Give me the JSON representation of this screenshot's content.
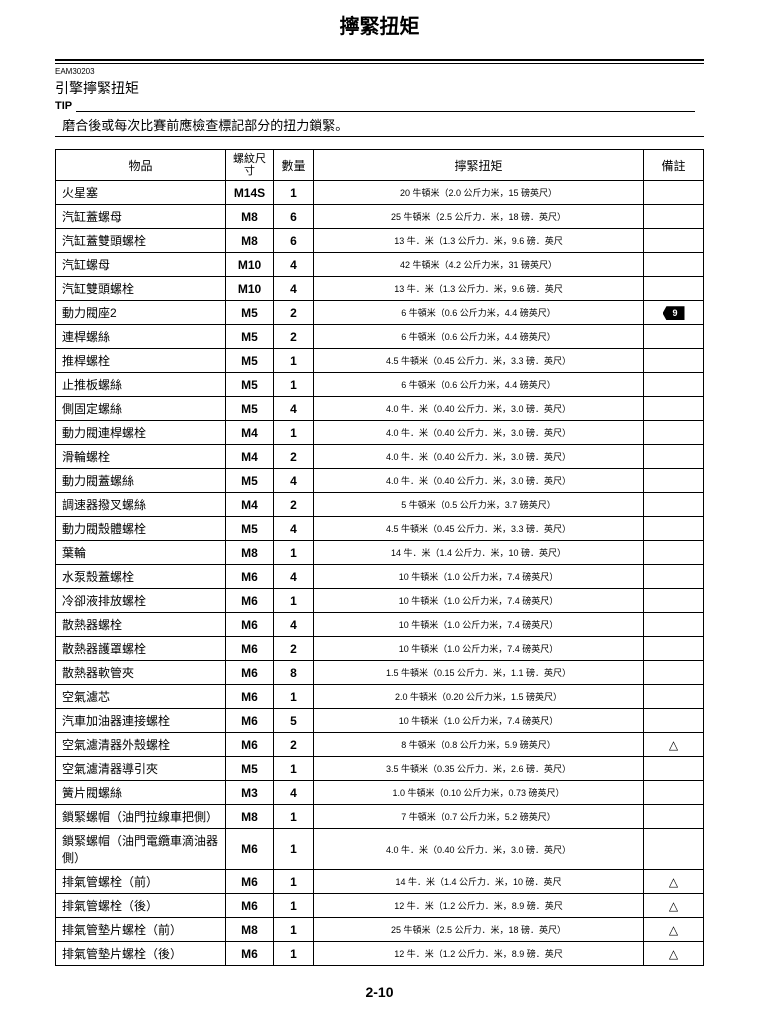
{
  "page_title": "擰緊扭矩",
  "doc_id": "EAM30203",
  "section_title": "引擎擰緊扭矩",
  "tip_label": "TIP",
  "tip_text": "  磨合後或每次比賽前應檢查標記部分的扭力鎖緊。",
  "page_number": "2-10",
  "headers": {
    "item": "物品",
    "thread": "螺紋尺寸",
    "qty": "數量",
    "torque": "擰緊扭矩",
    "remark": "備註"
  },
  "rows": [
    {
      "item": "火星塞",
      "thread": "M14S",
      "qty": "1",
      "torque": "20 牛頓米（2.0 公斤力米，15 磅英尺）",
      "remark": ""
    },
    {
      "item": "汽缸蓋螺母",
      "thread": "M8",
      "qty": "6",
      "torque": "25 牛頓米（2.5 公斤力．米，18 磅．英尺）",
      "remark": ""
    },
    {
      "item": "汽缸蓋雙頭螺栓",
      "thread": "M8",
      "qty": "6",
      "torque": "13 牛．米（1.3 公斤力．米，9.6 磅．英尺",
      "remark": ""
    },
    {
      "item": "汽缸螺母",
      "thread": "M10",
      "qty": "4",
      "torque": "42 牛頓米（4.2 公斤力米，31 磅英尺）",
      "remark": ""
    },
    {
      "item": "汽缸雙頭螺栓",
      "thread": "M10",
      "qty": "4",
      "torque": "13 牛．米（1.3 公斤力．米，9.6 磅．英尺",
      "remark": ""
    },
    {
      "item": "動力閥座2",
      "thread": "M5",
      "qty": "2",
      "torque": "6 牛頓米（0.6 公斤力米，4.4 磅英尺）",
      "remark": "TAG"
    },
    {
      "item": "連桿螺絲",
      "thread": "M5",
      "qty": "2",
      "torque": "6 牛頓米（0.6 公斤力米，4.4 磅英尺）",
      "remark": ""
    },
    {
      "item": "推桿螺栓",
      "thread": "M5",
      "qty": "1",
      "torque": "4.5 牛頓米（0.45 公斤力．米，3.3 磅．英尺）",
      "remark": ""
    },
    {
      "item": "止推板螺絲",
      "thread": "M5",
      "qty": "1",
      "torque": "6 牛頓米（0.6 公斤力米，4.4 磅英尺）",
      "remark": ""
    },
    {
      "item": "側固定螺絲",
      "thread": "M5",
      "qty": "4",
      "torque": "4.0 牛．米（0.40 公斤力．米，3.0 磅．英尺）",
      "remark": ""
    },
    {
      "item": "動力閥連桿螺栓",
      "thread": "M4",
      "qty": "1",
      "torque": "4.0 牛．米（0.40 公斤力．米，3.0 磅．英尺）",
      "remark": ""
    },
    {
      "item": "滑輪螺栓",
      "thread": "M4",
      "qty": "2",
      "torque": "4.0 牛．米（0.40 公斤力．米，3.0 磅．英尺）",
      "remark": ""
    },
    {
      "item": "動力閥蓋螺絲",
      "thread": "M5",
      "qty": "4",
      "torque": "4.0 牛．米（0.40 公斤力．米，3.0 磅．英尺）",
      "remark": ""
    },
    {
      "item": "調速器撥叉螺絲",
      "thread": "M4",
      "qty": "2",
      "torque": "5 牛頓米（0.5 公斤力米，3.7 磅英尺）",
      "remark": ""
    },
    {
      "item": "動力閥殼體螺栓",
      "thread": "M5",
      "qty": "4",
      "torque": "4.5 牛頓米（0.45 公斤力．米，3.3 磅．英尺）",
      "remark": ""
    },
    {
      "item": "葉輪",
      "thread": "M8",
      "qty": "1",
      "torque": "14 牛．米（1.4 公斤力．米，10 磅．英尺）",
      "remark": ""
    },
    {
      "item": "水泵殼蓋螺栓",
      "thread": "M6",
      "qty": "4",
      "torque": "10 牛頓米（1.0 公斤力米，7.4 磅英尺）",
      "remark": ""
    },
    {
      "item": "冷卻液排放螺栓",
      "thread": "M6",
      "qty": "1",
      "torque": "10 牛頓米（1.0 公斤力米，7.4 磅英尺）",
      "remark": ""
    },
    {
      "item": "散熱器螺栓",
      "thread": "M6",
      "qty": "4",
      "torque": "10 牛頓米（1.0 公斤力米，7.4 磅英尺）",
      "remark": ""
    },
    {
      "item": "散熱器護罩螺栓",
      "thread": "M6",
      "qty": "2",
      "torque": "10 牛頓米（1.0 公斤力米，7.4 磅英尺）",
      "remark": ""
    },
    {
      "item": "散熱器軟管夾",
      "thread": "M6",
      "qty": "8",
      "torque": "1.5 牛頓米（0.15 公斤力．米，1.1 磅．英尺）",
      "remark": ""
    },
    {
      "item": "空氣濾芯",
      "thread": "M6",
      "qty": "1",
      "torque": "2.0 牛頓米（0.20 公斤力米，1.5 磅英尺）",
      "remark": ""
    },
    {
      "item": "汽車加油器連接螺栓",
      "thread": "M6",
      "qty": "5",
      "torque": "10 牛頓米（1.0 公斤力米，7.4 磅英尺）",
      "remark": ""
    },
    {
      "item": "空氣濾清器外殼螺栓",
      "thread": "M6",
      "qty": "2",
      "torque": "8 牛頓米（0.8 公斤力米，5.9 磅英尺）",
      "remark": "△"
    },
    {
      "item": "空氣濾清器導引夾",
      "thread": "M5",
      "qty": "1",
      "torque": "3.5 牛頓米（0.35 公斤力．米，2.6 磅．英尺）",
      "remark": ""
    },
    {
      "item": "簧片閥螺絲",
      "thread": "M3",
      "qty": "4",
      "torque": "1.0 牛頓米（0.10 公斤力米，0.73 磅英尺）",
      "remark": ""
    },
    {
      "item": "鎖緊螺帽（油門拉線車把側）",
      "thread": "M8",
      "qty": "1",
      "torque": "7 牛頓米（0.7 公斤力米，5.2 磅英尺）",
      "remark": ""
    },
    {
      "item": "鎖緊螺帽（油門電纜車滴油器側）",
      "thread": "M6",
      "qty": "1",
      "torque": "4.0 牛．米（0.40 公斤力．米，3.0 磅．英尺）",
      "remark": ""
    },
    {
      "item": "排氣管螺栓（前）",
      "thread": "M6",
      "qty": "1",
      "torque": "14 牛．米（1.4 公斤力．米，10 磅．英尺",
      "remark": "△"
    },
    {
      "item": "排氣管螺栓（後）",
      "thread": "M6",
      "qty": "1",
      "torque": "12 牛．米（1.2 公斤力．米，8.9 磅．英尺",
      "remark": "△"
    },
    {
      "item": "排氣管墊片螺栓（前）",
      "thread": "M8",
      "qty": "1",
      "torque": "25 牛頓米（2.5 公斤力．米，18 磅．英尺）",
      "remark": "△"
    },
    {
      "item": "排氣管墊片螺栓（後）",
      "thread": "M6",
      "qty": "1",
      "torque": "12 牛．米（1.2 公斤力．米，8.9 磅．英尺",
      "remark": "△"
    }
  ]
}
